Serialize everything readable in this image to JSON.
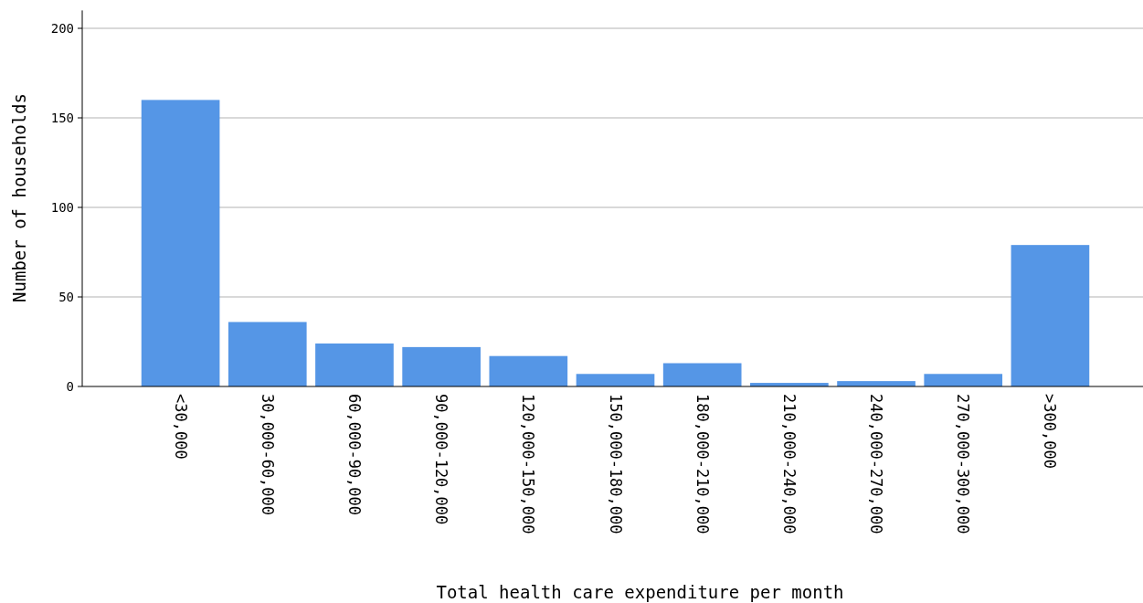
{
  "chart_data": {
    "type": "bar",
    "xlabel": "Total health care expenditure per month",
    "ylabel": "Number of households",
    "categories": [
      "<30,000",
      "30,000-60,000",
      "60,000-90,000",
      "90,000-120,000",
      "120,000-150,000",
      "150,000-180,000",
      "180,000-210,000",
      "210,000-240,000",
      "240,000-270,000",
      "270,000-300,000",
      ">300,000"
    ],
    "values": [
      160,
      36,
      24,
      22,
      17,
      7,
      13,
      2,
      3,
      7,
      79
    ],
    "color": "#5596e6",
    "ylim": [
      0,
      210
    ],
    "yticks": [
      0,
      50,
      100,
      150,
      200
    ],
    "grid": "y"
  }
}
